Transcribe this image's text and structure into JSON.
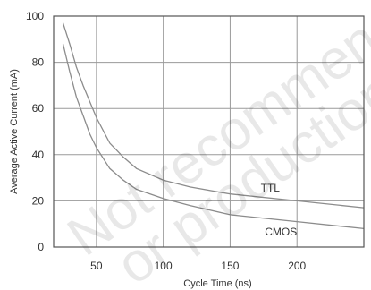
{
  "chart_data": {
    "type": "line",
    "xlabel": "Cycle Time (ns)",
    "ylabel": "Average Active Current (mA)",
    "xlim": [
      18,
      250
    ],
    "ylim": [
      0,
      100
    ],
    "xticks": [
      50,
      100,
      150,
      200
    ],
    "yticks": [
      0,
      20,
      40,
      60,
      80,
      100
    ],
    "grid": true,
    "series": [
      {
        "name": "TTL",
        "color": "#8c8c8c",
        "x": [
          25,
          30,
          35,
          40,
          45,
          50,
          60,
          70,
          80,
          100,
          120,
          150,
          200,
          250
        ],
        "y": [
          97,
          88,
          78,
          70,
          63,
          56,
          45,
          39,
          34,
          29,
          26,
          23,
          20,
          17
        ]
      },
      {
        "name": "CMOS",
        "color": "#8c8c8c",
        "x": [
          25,
          30,
          35,
          40,
          45,
          50,
          60,
          70,
          80,
          100,
          120,
          150,
          200,
          250
        ],
        "y": [
          88,
          76,
          65,
          57,
          49,
          43,
          34,
          29,
          25,
          21,
          18,
          14,
          11,
          8
        ]
      }
    ],
    "annotations": [
      {
        "text": "TTL",
        "x": 180,
        "y": 24
      },
      {
        "text": "CMOS",
        "x": 188,
        "y": 5
      }
    ],
    "watermark": [
      "Not recommended for new",
      "or production to ship"
    ]
  }
}
